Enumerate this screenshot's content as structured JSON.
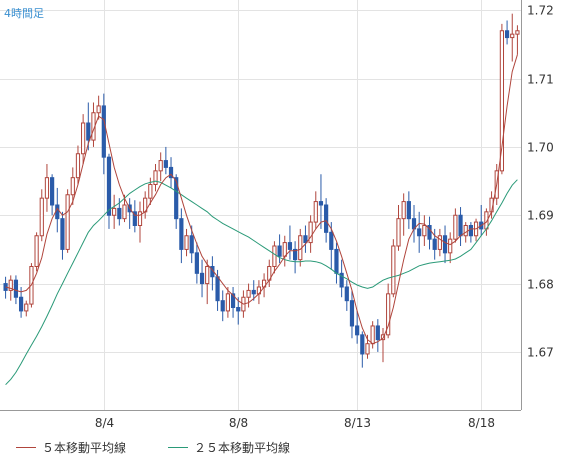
{
  "chart_data": {
    "type": "candlestick",
    "timeframe_label": "4時間足",
    "y_ticks": [
      "1.72",
      "1.71",
      "1.70",
      "1.69",
      "1.68",
      "1.67"
    ],
    "y_tick_values": [
      1.72,
      1.71,
      1.7,
      1.69,
      1.68,
      1.67
    ],
    "ylim": [
      1.6615,
      1.7215
    ],
    "x_tick_labels": [
      "8/4",
      "8/8",
      "8/13",
      "8/18"
    ],
    "x_tick_index": [
      19,
      45,
      68,
      92
    ],
    "grid": true,
    "colors": {
      "up": "#b0453c",
      "down": "#2a5ba9",
      "ma5": "#b0453c",
      "ma25": "#2a9a78",
      "grid": "#e3e3e3",
      "axis": "#999999"
    },
    "legend": [
      {
        "label": "５本移動平均線",
        "color": "#b0453c"
      },
      {
        "label": "２５本移動平均線",
        "color": "#2a9a78"
      }
    ],
    "candles_ohlc": [
      [
        1.68,
        1.681,
        1.6778,
        1.679
      ],
      [
        1.679,
        1.6812,
        1.6775,
        1.6805
      ],
      [
        1.6805,
        1.6812,
        1.677,
        1.678
      ],
      [
        1.678,
        1.6795,
        1.675,
        1.676
      ],
      [
        1.676,
        1.6775,
        1.6752,
        1.677
      ],
      [
        1.677,
        1.683,
        1.6765,
        1.6825
      ],
      [
        1.6825,
        1.6875,
        1.6818,
        1.687
      ],
      [
        1.687,
        1.6938,
        1.6862,
        1.6925
      ],
      [
        1.6925,
        1.6975,
        1.6905,
        1.6955
      ],
      [
        1.6955,
        1.696,
        1.69,
        1.6915
      ],
      [
        1.6915,
        1.694,
        1.6875,
        1.6895
      ],
      [
        1.6895,
        1.6905,
        1.6835,
        1.685
      ],
      [
        1.685,
        1.6938,
        1.6845,
        1.693
      ],
      [
        1.693,
        1.697,
        1.6915,
        1.6955
      ],
      [
        1.6955,
        1.7002,
        1.6945,
        1.699
      ],
      [
        1.699,
        1.7048,
        1.6975,
        1.7035
      ],
      [
        1.7035,
        1.7065,
        1.6995,
        1.701
      ],
      [
        1.701,
        1.7065,
        1.7,
        1.705
      ],
      [
        1.705,
        1.7075,
        1.704,
        1.706
      ],
      [
        1.706,
        1.7078,
        1.696,
        1.6985
      ],
      [
        1.6985,
        1.699,
        1.688,
        1.69
      ],
      [
        1.69,
        1.693,
        1.688,
        1.691
      ],
      [
        1.691,
        1.6925,
        1.6885,
        1.6895
      ],
      [
        1.6895,
        1.693,
        1.689,
        1.6915
      ],
      [
        1.6915,
        1.6925,
        1.688,
        1.6905
      ],
      [
        1.6905,
        1.6922,
        1.6875,
        1.6885
      ],
      [
        1.6885,
        1.692,
        1.686,
        1.6905
      ],
      [
        1.6905,
        1.6935,
        1.6895,
        1.6925
      ],
      [
        1.6925,
        1.6955,
        1.6915,
        1.6945
      ],
      [
        1.6945,
        1.6975,
        1.6935,
        1.6965
      ],
      [
        1.6965,
        1.6992,
        1.695,
        1.698
      ],
      [
        1.698,
        1.7,
        1.696,
        1.697
      ],
      [
        1.697,
        1.6985,
        1.694,
        1.6955
      ],
      [
        1.6955,
        1.696,
        1.688,
        1.6895
      ],
      [
        1.6895,
        1.691,
        1.683,
        1.685
      ],
      [
        1.685,
        1.688,
        1.684,
        1.687
      ],
      [
        1.687,
        1.6885,
        1.683,
        1.6845
      ],
      [
        1.6845,
        1.686,
        1.68,
        1.6815
      ],
      [
        1.6815,
        1.6835,
        1.678,
        1.68
      ],
      [
        1.68,
        1.6835,
        1.677,
        1.6825
      ],
      [
        1.6825,
        1.684,
        1.679,
        1.681
      ],
      [
        1.681,
        1.682,
        1.676,
        1.6775
      ],
      [
        1.6775,
        1.679,
        1.6745,
        1.676
      ],
      [
        1.676,
        1.6795,
        1.675,
        1.6785
      ],
      [
        1.6785,
        1.6795,
        1.675,
        1.6765
      ],
      [
        1.6765,
        1.678,
        1.674,
        1.676
      ],
      [
        1.676,
        1.679,
        1.675,
        1.678
      ],
      [
        1.678,
        1.68,
        1.6765,
        1.679
      ],
      [
        1.679,
        1.6805,
        1.6775,
        1.6785
      ],
      [
        1.6785,
        1.6805,
        1.677,
        1.6795
      ],
      [
        1.6795,
        1.6815,
        1.678,
        1.6805
      ],
      [
        1.6805,
        1.6835,
        1.6795,
        1.6825
      ],
      [
        1.6825,
        1.6862,
        1.6815,
        1.6855
      ],
      [
        1.6855,
        1.6872,
        1.683,
        1.684
      ],
      [
        1.684,
        1.687,
        1.6825,
        1.686
      ],
      [
        1.686,
        1.6885,
        1.6835,
        1.685
      ],
      [
        1.685,
        1.6862,
        1.6815,
        1.6835
      ],
      [
        1.6835,
        1.688,
        1.6825,
        1.687
      ],
      [
        1.687,
        1.6885,
        1.6845,
        1.686
      ],
      [
        1.686,
        1.69,
        1.6845,
        1.689
      ],
      [
        1.689,
        1.6935,
        1.688,
        1.692
      ],
      [
        1.692,
        1.696,
        1.688,
        1.6915
      ],
      [
        1.6915,
        1.6925,
        1.686,
        1.6875
      ],
      [
        1.6875,
        1.689,
        1.682,
        1.685
      ],
      [
        1.685,
        1.686,
        1.68,
        1.6815
      ],
      [
        1.6815,
        1.6835,
        1.678,
        1.6795
      ],
      [
        1.6795,
        1.6805,
        1.676,
        1.6775
      ],
      [
        1.6775,
        1.679,
        1.672,
        1.6738
      ],
      [
        1.6738,
        1.676,
        1.6712,
        1.6725
      ],
      [
        1.6725,
        1.673,
        1.6677,
        1.6697
      ],
      [
        1.6697,
        1.6725,
        1.669,
        1.6712
      ],
      [
        1.6712,
        1.6745,
        1.6705,
        1.6738
      ],
      [
        1.6738,
        1.6748,
        1.67,
        1.6718
      ],
      [
        1.6718,
        1.6735,
        1.6685,
        1.6725
      ],
      [
        1.6725,
        1.68,
        1.672,
        1.6785
      ],
      [
        1.6785,
        1.6865,
        1.678,
        1.6855
      ],
      [
        1.6855,
        1.6915,
        1.6848,
        1.6895
      ],
      [
        1.6895,
        1.6932,
        1.687,
        1.692
      ],
      [
        1.692,
        1.6935,
        1.688,
        1.6895
      ],
      [
        1.6895,
        1.6915,
        1.686,
        1.688
      ],
      [
        1.688,
        1.6905,
        1.6845,
        1.687
      ],
      [
        1.687,
        1.69,
        1.6855,
        1.6885
      ],
      [
        1.6885,
        1.6898,
        1.685,
        1.6865
      ],
      [
        1.6865,
        1.688,
        1.6835,
        1.685
      ],
      [
        1.685,
        1.688,
        1.684,
        1.687
      ],
      [
        1.687,
        1.6885,
        1.683,
        1.6845
      ],
      [
        1.6845,
        1.6875,
        1.683,
        1.6865
      ],
      [
        1.6865,
        1.691,
        1.686,
        1.69
      ],
      [
        1.69,
        1.6912,
        1.6855,
        1.687
      ],
      [
        1.687,
        1.689,
        1.686,
        1.6885
      ],
      [
        1.6885,
        1.689,
        1.686,
        1.687
      ],
      [
        1.687,
        1.6895,
        1.6862,
        1.689
      ],
      [
        1.689,
        1.6915,
        1.687,
        1.688
      ],
      [
        1.688,
        1.691,
        1.687,
        1.6905
      ],
      [
        1.6905,
        1.6935,
        1.6895,
        1.6925
      ],
      [
        1.6925,
        1.6975,
        1.6915,
        1.6965
      ],
      [
        1.6965,
        1.718,
        1.696,
        1.717
      ],
      [
        1.717,
        1.7185,
        1.715,
        1.716
      ],
      [
        1.716,
        1.7195,
        1.7125,
        1.7165
      ],
      [
        1.7165,
        1.7178,
        1.7135,
        1.717
      ]
    ],
    "ma5": [
      1.6795,
      1.6793,
      1.679,
      1.6788,
      1.679,
      1.6798,
      1.6815,
      1.6838,
      1.6872,
      1.6895,
      1.691,
      1.69,
      1.6905,
      1.692,
      1.6945,
      1.6975,
      1.7005,
      1.7025,
      1.7045,
      1.704,
      1.7005,
      1.697,
      1.6945,
      1.6925,
      1.691,
      1.69,
      1.69,
      1.6905,
      1.6918,
      1.693,
      1.6945,
      1.6955,
      1.696,
      1.695,
      1.6925,
      1.69,
      1.6878,
      1.6858,
      1.684,
      1.6828,
      1.682,
      1.681,
      1.68,
      1.679,
      1.6783,
      1.6775,
      1.677,
      1.6772,
      1.6778,
      1.6785,
      1.6795,
      1.6805,
      1.6818,
      1.6828,
      1.684,
      1.6848,
      1.6848,
      1.685,
      1.6858,
      1.6868,
      1.688,
      1.689,
      1.6892,
      1.688,
      1.6862,
      1.684,
      1.6815,
      1.679,
      1.676,
      1.6735,
      1.6718,
      1.6712,
      1.6715,
      1.672,
      1.6738,
      1.6765,
      1.68,
      1.6835,
      1.6865,
      1.688,
      1.6888,
      1.6887,
      1.688,
      1.687,
      1.6865,
      1.686,
      1.6857,
      1.6862,
      1.687,
      1.6875,
      1.688,
      1.688,
      1.6885,
      1.689,
      1.6905,
      1.6945,
      1.7,
      1.706,
      1.711,
      1.7135
    ],
    "ma25": [
      1.6652,
      1.666,
      1.667,
      1.6683,
      1.6697,
      1.671,
      1.6723,
      1.6737,
      1.6752,
      1.6768,
      1.6785,
      1.68,
      1.6815,
      1.683,
      1.6845,
      1.686,
      1.6875,
      1.6885,
      1.6892,
      1.69,
      1.6908,
      1.6913,
      1.6918,
      1.6925,
      1.6932,
      1.6937,
      1.6942,
      1.6946,
      1.6948,
      1.695,
      1.6948,
      1.6944,
      1.694,
      1.6935,
      1.693,
      1.6925,
      1.692,
      1.6915,
      1.691,
      1.6905,
      1.6898,
      1.6893,
      1.6888,
      1.6884,
      1.688,
      1.6876,
      1.6872,
      1.6868,
      1.6863,
      1.6858,
      1.6853,
      1.6848,
      1.6843,
      1.6838,
      1.6835,
      1.6833,
      1.6832,
      1.6832,
      1.6833,
      1.6833,
      1.6832,
      1.683,
      1.6826,
      1.6821,
      1.6815,
      1.6811,
      1.6807,
      1.6802,
      1.6798,
      1.6795,
      1.6793,
      1.6795,
      1.68,
      1.6805,
      1.6808,
      1.681,
      1.6812,
      1.6815,
      1.6818,
      1.6822,
      1.6826,
      1.6828,
      1.683,
      1.6831,
      1.6832,
      1.6833,
      1.6834,
      1.6836,
      1.684,
      1.6845,
      1.685,
      1.686,
      1.687,
      1.688,
      1.6892,
      1.6905,
      1.6918,
      1.6932,
      1.6944,
      1.6952
    ]
  }
}
